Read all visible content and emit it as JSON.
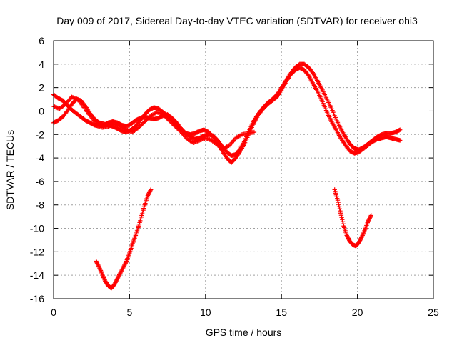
{
  "chart_data": {
    "type": "scatter",
    "title": "Day 009 of 2017, Sidereal Day-to-day VTEC variation (SDTVAR) for receiver ohi3",
    "xlabel": "GPS time / hours",
    "ylabel": "SDTVAR / TECUs",
    "xlim": [
      0,
      25
    ],
    "ylim": [
      -16,
      6
    ],
    "xticks": [
      0,
      5,
      10,
      15,
      20,
      25
    ],
    "yticks": [
      -16,
      -14,
      -12,
      -10,
      -8,
      -6,
      -4,
      -2,
      0,
      2,
      4,
      6
    ],
    "grid": true,
    "marker": "plus",
    "series": [
      {
        "name": "main-arc-a",
        "color": "#ff0000",
        "x": [
          0.0,
          0.3,
          0.6,
          0.9,
          1.2,
          1.5,
          1.8,
          2.1,
          2.4,
          2.7,
          3.0,
          3.3,
          3.6,
          3.9,
          4.2,
          4.5,
          4.8,
          5.1,
          5.4,
          5.7,
          6.0,
          6.3,
          6.6,
          6.9,
          7.2,
          7.5,
          7.8,
          8.1,
          8.4,
          8.7,
          9.0,
          9.3,
          9.6,
          9.9,
          10.2,
          10.5,
          10.8,
          11.1,
          11.4,
          11.7,
          12.0,
          12.3,
          12.6,
          12.9,
          13.2,
          13.5,
          13.8,
          14.1,
          14.4,
          14.7,
          15.0,
          15.3,
          15.6,
          15.9,
          16.2,
          16.5,
          16.8,
          17.1,
          17.4,
          17.7,
          18.0,
          18.3,
          18.6,
          18.9,
          19.2,
          19.5,
          19.8,
          20.1,
          20.4,
          20.7,
          21.0,
          21.3,
          21.6,
          21.9,
          22.2,
          22.5,
          22.8
        ],
        "y": [
          1.4,
          1.1,
          0.9,
          0.5,
          0.1,
          -0.2,
          -0.5,
          -0.8,
          -1.0,
          -1.2,
          -1.3,
          -1.2,
          -1.0,
          -0.9,
          -1.0,
          -1.2,
          -1.3,
          -1.1,
          -0.8,
          -0.6,
          -0.5,
          -0.6,
          -0.7,
          -0.6,
          -0.4,
          -0.3,
          -0.6,
          -1.0,
          -1.5,
          -1.9,
          -2.2,
          -2.4,
          -2.3,
          -2.1,
          -2.0,
          -2.1,
          -2.5,
          -3.0,
          -3.5,
          -3.8,
          -3.7,
          -3.2,
          -2.5,
          -1.6,
          -0.8,
          -0.2,
          0.3,
          0.7,
          1.0,
          1.4,
          2.0,
          2.6,
          3.2,
          3.7,
          4.0,
          4.0,
          3.7,
          3.2,
          2.5,
          1.8,
          1.0,
          0.2,
          -0.7,
          -1.5,
          -2.2,
          -2.8,
          -3.2,
          -3.3,
          -3.1,
          -2.8,
          -2.5,
          -2.2,
          -2.0,
          -1.9,
          -1.9,
          -1.8,
          -1.6
        ]
      },
      {
        "name": "main-arc-b",
        "color": "#ff0000",
        "x": [
          0.0,
          0.3,
          0.6,
          0.9,
          1.2,
          1.5,
          1.8,
          2.1,
          2.4,
          2.7,
          3.0,
          3.3,
          3.6,
          3.9,
          4.2,
          4.5,
          4.8,
          5.1,
          5.4,
          5.7,
          6.0,
          6.3,
          6.6,
          6.9,
          7.2,
          7.5,
          7.8,
          8.1,
          8.4,
          8.7,
          9.0,
          9.3,
          9.6,
          9.9,
          10.2,
          10.5,
          10.8,
          11.1,
          11.4,
          11.7,
          12.0,
          12.3,
          12.6,
          12.9,
          13.2,
          13.5,
          13.8,
          14.1,
          14.4,
          14.7,
          15.0,
          15.3,
          15.6,
          15.9,
          16.2,
          16.5,
          16.8,
          17.1,
          17.4,
          17.7,
          18.0,
          18.3,
          18.6,
          18.9,
          19.2,
          19.5,
          19.8,
          20.1,
          20.4,
          20.7,
          21.0,
          21.3,
          21.6,
          21.9,
          22.2,
          22.5,
          22.8
        ],
        "y": [
          -1.0,
          -0.8,
          -0.5,
          0.0,
          0.6,
          1.0,
          0.9,
          0.4,
          -0.2,
          -0.7,
          -1.0,
          -1.1,
          -1.2,
          -1.3,
          -1.5,
          -1.7,
          -1.8,
          -1.6,
          -1.3,
          -0.8,
          -0.3,
          0.1,
          0.3,
          0.2,
          -0.1,
          -0.4,
          -0.8,
          -1.2,
          -1.6,
          -1.9,
          -2.0,
          -1.9,
          -1.7,
          -1.6,
          -1.8,
          -2.2,
          -2.8,
          -3.4,
          -4.0,
          -4.4,
          -4.0,
          -3.4,
          -2.7,
          -1.8,
          -1.0,
          -0.3,
          0.2,
          0.6,
          0.9,
          1.2,
          1.8,
          2.5,
          3.1,
          3.5,
          3.7,
          3.5,
          3.0,
          2.3,
          1.6,
          0.8,
          -0.1,
          -0.9,
          -1.6,
          -2.3,
          -2.9,
          -3.4,
          -3.6,
          -3.5,
          -3.2,
          -2.9,
          -2.6,
          -2.4,
          -2.3,
          -2.2,
          -2.3,
          -2.4,
          -2.5
        ]
      },
      {
        "name": "side-arc-c",
        "color": "#ff0000",
        "x": [
          0.0,
          0.4,
          0.8,
          1.2,
          1.6,
          2.0,
          2.4,
          2.8,
          3.2,
          3.6,
          4.0,
          4.4,
          4.8,
          5.2,
          5.6,
          6.0,
          6.4,
          6.8,
          7.2,
          7.6,
          8.0,
          8.4,
          8.8,
          9.2,
          9.6,
          10.0,
          10.4,
          10.8,
          11.2,
          11.6,
          12.0,
          12.4,
          12.8,
          13.2
        ],
        "y": [
          0.4,
          0.2,
          0.6,
          1.2,
          1.0,
          0.3,
          -0.4,
          -1.0,
          -1.4,
          -1.3,
          -1.1,
          -1.3,
          -1.6,
          -1.8,
          -1.4,
          -0.9,
          -0.4,
          -0.1,
          -0.3,
          -0.8,
          -1.3,
          -1.8,
          -2.4,
          -2.7,
          -2.5,
          -2.3,
          -2.5,
          -2.9,
          -3.2,
          -2.9,
          -2.3,
          -2.0,
          -1.9,
          -1.8
        ]
      },
      {
        "name": "morning-dip",
        "color": "#ff0000",
        "x": [
          2.8,
          3.0,
          3.2,
          3.4,
          3.6,
          3.8,
          4.0,
          4.2,
          4.4,
          4.6,
          4.8,
          5.0,
          5.2,
          5.4,
          5.6,
          5.8,
          6.0,
          6.2,
          6.4
        ],
        "y": [
          -12.8,
          -13.3,
          -13.9,
          -14.5,
          -14.9,
          -15.1,
          -14.8,
          -14.3,
          -13.8,
          -13.3,
          -12.8,
          -12.1,
          -11.3,
          -10.6,
          -9.8,
          -8.9,
          -8.0,
          -7.2,
          -6.7
        ]
      },
      {
        "name": "evening-dip",
        "color": "#ff0000",
        "x": [
          18.5,
          18.7,
          18.9,
          19.1,
          19.3,
          19.5,
          19.7,
          19.9,
          20.1,
          20.3,
          20.5,
          20.7,
          20.9
        ],
        "y": [
          -6.7,
          -7.6,
          -8.7,
          -9.8,
          -10.6,
          -11.1,
          -11.4,
          -11.5,
          -11.2,
          -10.7,
          -10.1,
          -9.4,
          -8.9
        ]
      }
    ]
  }
}
